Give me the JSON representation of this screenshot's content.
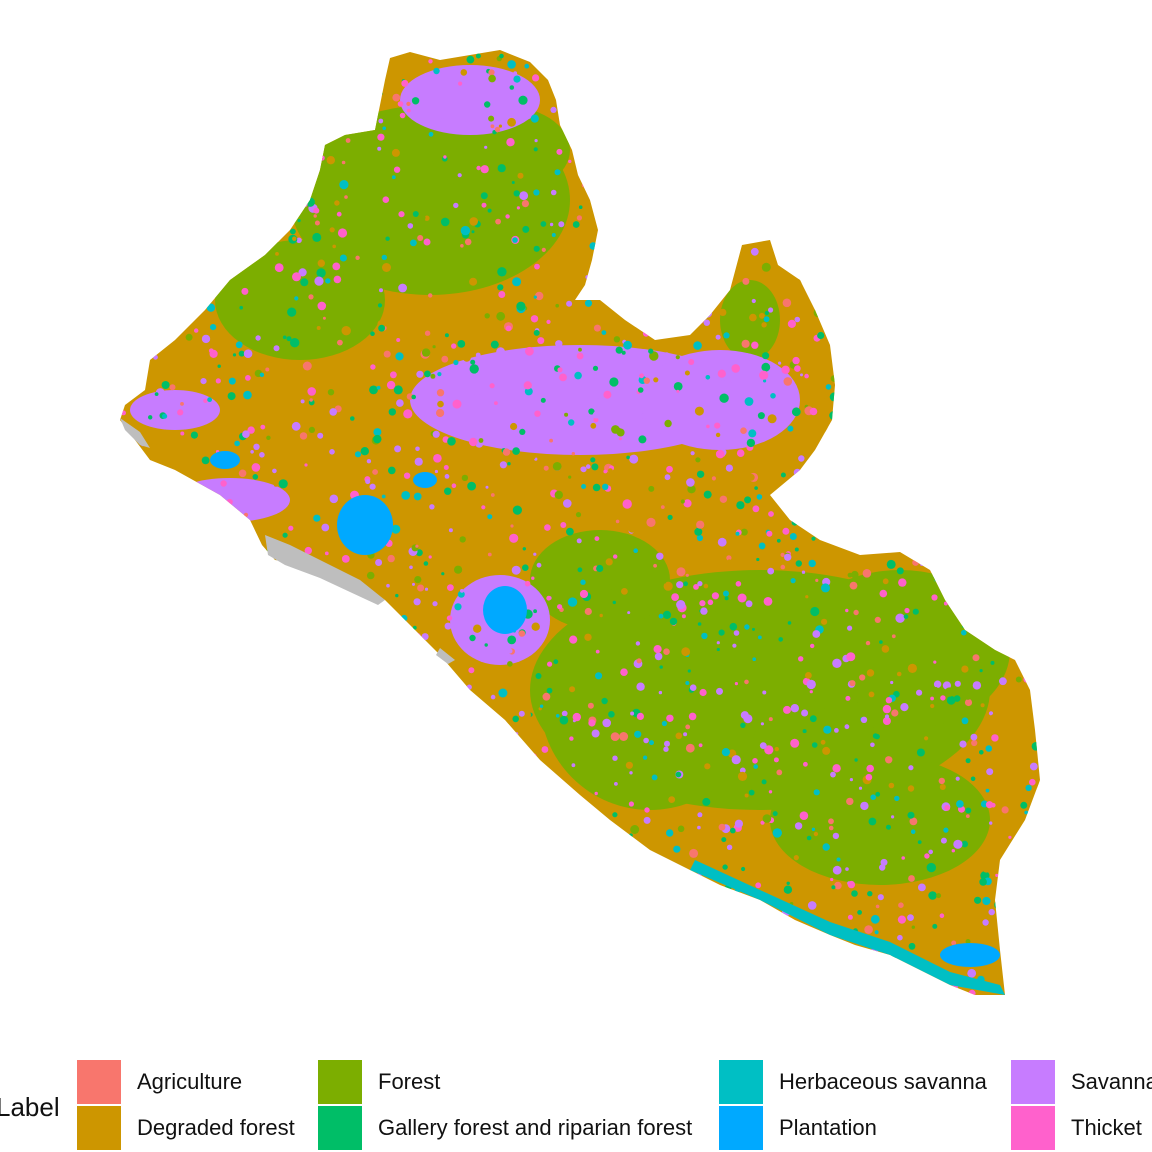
{
  "legend": {
    "title": "Label",
    "items": [
      {
        "label": "Agriculture",
        "color": "#F8766D"
      },
      {
        "label": "Degraded forest",
        "color": "#CD9600"
      },
      {
        "label": "Forest",
        "color": "#7CAE00"
      },
      {
        "label": "Gallery forest and riparian forest",
        "color": "#00BE67"
      },
      {
        "label": "Herbaceous savanna",
        "color": "#00BFC4"
      },
      {
        "label": "Plantation",
        "color": "#00A9FF"
      },
      {
        "label": "Savanna",
        "color": "#C77CFF"
      },
      {
        "label": "Thicket",
        "color": "#FF61CC"
      }
    ]
  },
  "map": {
    "nodata_color": "#BEBEBE"
  }
}
